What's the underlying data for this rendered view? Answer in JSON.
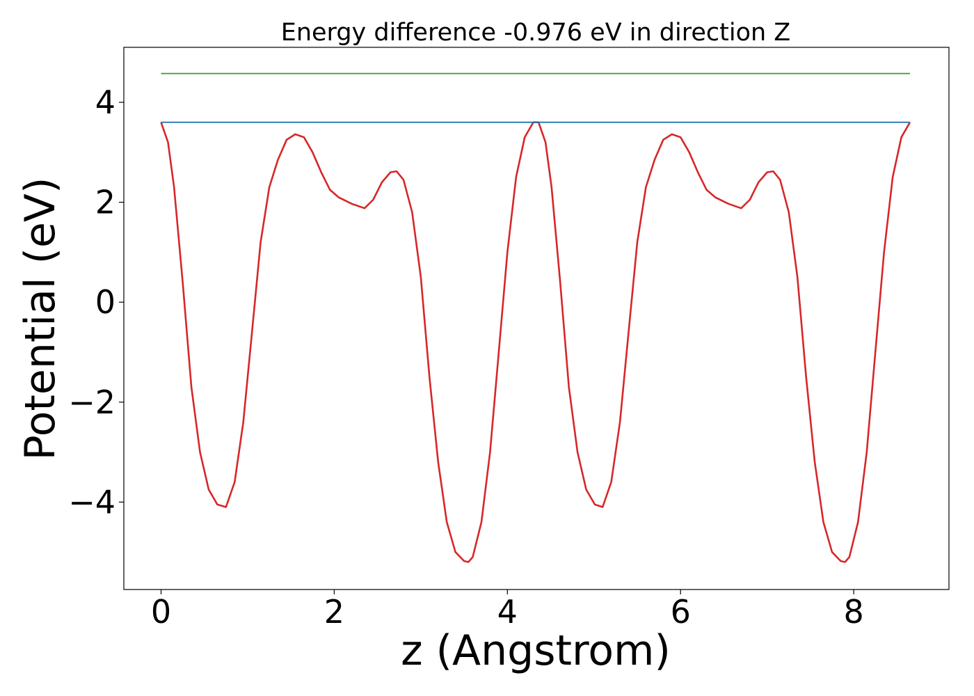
{
  "chart_data": {
    "type": "line",
    "title": "Energy difference -0.976 eV in direction Z",
    "xlabel": "z (Angstrom)",
    "ylabel": "Potential (eV)",
    "xlim": [
      -0.43,
      9.1
    ],
    "ylim": [
      -5.75,
      5.1
    ],
    "xticks": [
      0,
      2,
      4,
      6,
      8
    ],
    "xtick_labels": [
      "0",
      "2",
      "4",
      "6",
      "8"
    ],
    "yticks": [
      -4,
      -2,
      0,
      2,
      4
    ],
    "ytick_labels": [
      "−4",
      "−2",
      "0",
      "2",
      "4"
    ],
    "grid": false,
    "legend": "none",
    "series": [
      {
        "color": "#d62728",
        "x": [
          0.0,
          0.08,
          0.15,
          0.25,
          0.35,
          0.45,
          0.55,
          0.65,
          0.75,
          0.85,
          0.95,
          1.05,
          1.15,
          1.25,
          1.35,
          1.45,
          1.55,
          1.65,
          1.75,
          1.85,
          1.95,
          2.05,
          2.2,
          2.35,
          2.45,
          2.55,
          2.65,
          2.72,
          2.8,
          2.9,
          3.0,
          3.1,
          3.2,
          3.3,
          3.4,
          3.5,
          3.55,
          3.6,
          3.7,
          3.8,
          3.9,
          4.0,
          4.1,
          4.2,
          4.3,
          4.36,
          4.44,
          4.51,
          4.61,
          4.71,
          4.81,
          4.91,
          5.01,
          5.1,
          5.2,
          5.3,
          5.4,
          5.5,
          5.6,
          5.7,
          5.8,
          5.9,
          6.0,
          6.1,
          6.2,
          6.3,
          6.4,
          6.55,
          6.7,
          6.8,
          6.9,
          7.0,
          7.07,
          7.15,
          7.25,
          7.35,
          7.45,
          7.55,
          7.65,
          7.75,
          7.85,
          7.9,
          7.95,
          8.05,
          8.15,
          8.25,
          8.35,
          8.45,
          8.55,
          8.65
        ],
        "y": [
          3.6,
          3.2,
          2.3,
          0.4,
          -1.7,
          -3.0,
          -3.75,
          -4.05,
          -4.1,
          -3.6,
          -2.4,
          -0.6,
          1.2,
          2.3,
          2.85,
          3.25,
          3.36,
          3.3,
          3.0,
          2.6,
          2.25,
          2.1,
          1.97,
          1.88,
          2.05,
          2.4,
          2.6,
          2.62,
          2.45,
          1.8,
          0.5,
          -1.5,
          -3.2,
          -4.4,
          -5.0,
          -5.18,
          -5.2,
          -5.1,
          -4.4,
          -3.0,
          -1.0,
          1.0,
          2.5,
          3.3,
          3.6,
          3.6,
          3.2,
          2.3,
          0.4,
          -1.7,
          -3.0,
          -3.75,
          -4.05,
          -4.1,
          -3.6,
          -2.4,
          -0.6,
          1.2,
          2.3,
          2.85,
          3.25,
          3.36,
          3.3,
          3.0,
          2.6,
          2.25,
          2.1,
          1.97,
          1.88,
          2.05,
          2.4,
          2.6,
          2.62,
          2.45,
          1.8,
          0.5,
          -1.5,
          -3.2,
          -4.4,
          -5.0,
          -5.18,
          -5.2,
          -5.1,
          -4.4,
          -3.0,
          -1.0,
          1.0,
          2.5,
          3.3,
          3.6
        ]
      },
      {
        "color": "#1f77b4",
        "x": [
          0.0,
          8.65
        ],
        "y": [
          3.6,
          3.6
        ]
      },
      {
        "color": "#2ca02c",
        "x": [
          0.0,
          8.65
        ],
        "y": [
          4.576,
          4.576
        ]
      }
    ]
  }
}
